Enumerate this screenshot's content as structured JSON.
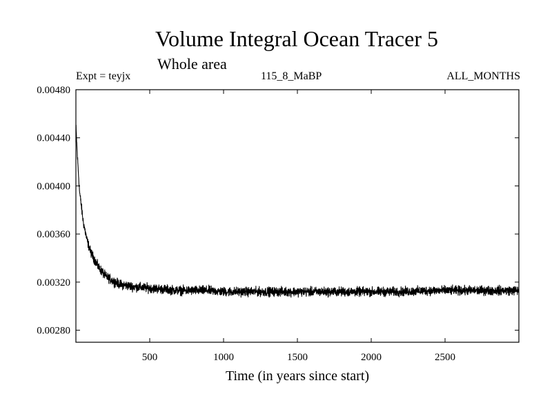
{
  "chart_data": {
    "type": "line",
    "title": "Volume Integral Ocean Tracer 5",
    "subtitle": "Whole area",
    "experiment": "Expt = teyjx",
    "run_label": "115_8_MaBP",
    "period": "ALL_MONTHS",
    "xlabel": "Time (in years since start)",
    "ylabel": "",
    "xlim": [
      0,
      3000
    ],
    "ylim": [
      0.0027,
      0.0048
    ],
    "x_ticks": [
      500,
      1000,
      1500,
      2000,
      2500
    ],
    "x_tick_labels": [
      "500",
      "1000",
      "1500",
      "2000",
      "2500"
    ],
    "y_ticks": [
      0.0028,
      0.0032,
      0.0036,
      0.004,
      0.0044,
      0.0048
    ],
    "y_tick_labels": [
      "0.00280",
      "0.00320",
      "0.00360",
      "0.00400",
      "0.00440",
      "0.00480"
    ],
    "series": [
      {
        "name": "Ocean Tracer 5",
        "color": "#000000",
        "x": [
          0,
          10,
          25,
          50,
          75,
          100,
          150,
          200,
          250,
          300,
          400,
          500,
          600,
          700,
          800,
          900,
          1000,
          1200,
          1400,
          1600,
          1800,
          2000,
          2200,
          2400,
          2600,
          2800,
          3000
        ],
        "y": [
          0.0045,
          0.00425,
          0.00395,
          0.0037,
          0.00355,
          0.00345,
          0.00333,
          0.00325,
          0.00321,
          0.00318,
          0.00316,
          0.00315,
          0.00314,
          0.00313,
          0.00313,
          0.00313,
          0.00312,
          0.00312,
          0.00312,
          0.00312,
          0.00312,
          0.00312,
          0.00312,
          0.00313,
          0.00313,
          0.00313,
          0.00313
        ],
        "noise_amplitude": 0.0001
      }
    ]
  }
}
